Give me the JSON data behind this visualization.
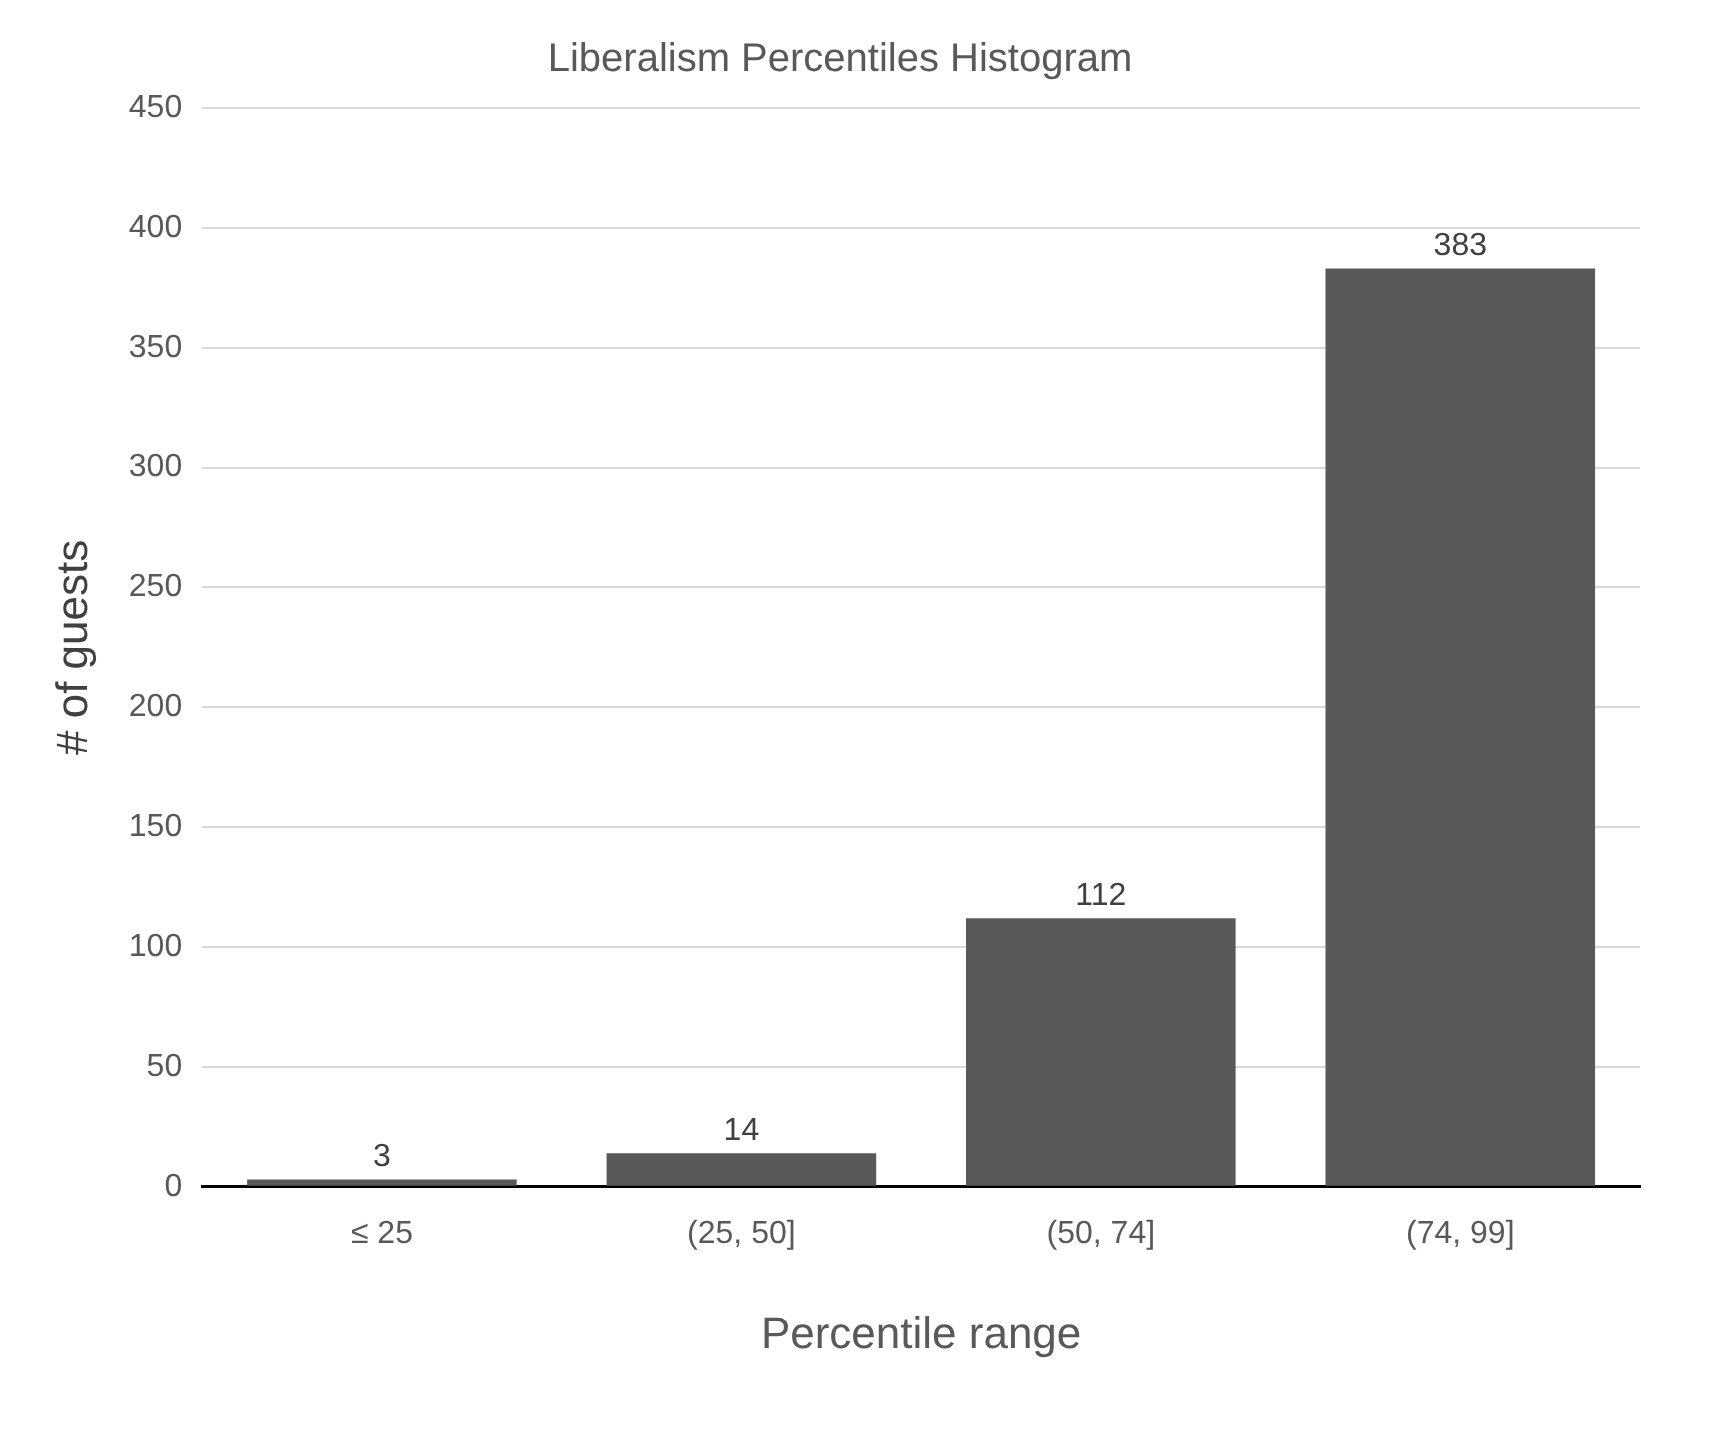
{
  "chart_data": {
    "type": "bar",
    "title": "Liberalism Percentiles Histogram",
    "xlabel": "Percentile range",
    "ylabel": "# of guests",
    "categories": [
      "≤ 25",
      "(25, 50]",
      "(50, 74]",
      "(74, 99]"
    ],
    "values": [
      3,
      14,
      112,
      383
    ],
    "color": "#595959",
    "ylim": [
      0,
      450
    ],
    "yticks": [
      0,
      50,
      100,
      150,
      200,
      250,
      300,
      350,
      400,
      450
    ],
    "grid": "y",
    "data_labels": true,
    "legend": false
  }
}
